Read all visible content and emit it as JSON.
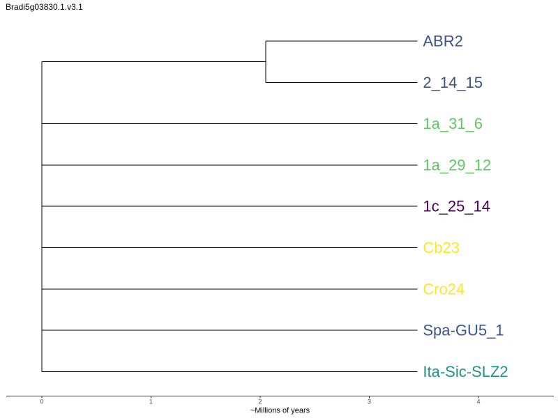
{
  "title": "Bradi5g03830.1.v3.1",
  "chart_data": {
    "type": "tree",
    "title": "Bradi5g03830.1.v3.1",
    "xlabel": "~Millions of years",
    "xticks": [
      "0",
      "1",
      "2",
      "3",
      "4"
    ],
    "xlim": [
      -0.32,
      4.7
    ],
    "root_x": 0,
    "inner_node": {
      "x": 2.05,
      "children": [
        "ABR2",
        "2_14_15"
      ]
    },
    "tip_x": 3.44,
    "leaves": [
      {
        "label": "ABR2",
        "color": "#3b528b"
      },
      {
        "label": "2_14_15",
        "color": "#3b528b"
      },
      {
        "label": "1a_31_6",
        "color": "#5ec962"
      },
      {
        "label": "1a_29_12",
        "color": "#5ec962"
      },
      {
        "label": "1c_25_14",
        "color": "#440154"
      },
      {
        "label": "Cb23",
        "color": "#fde725"
      },
      {
        "label": "Cro24",
        "color": "#fde725"
      },
      {
        "label": "Spa-GU5_1",
        "color": "#3b528b"
      },
      {
        "label": "Ita-Sic-SLZ2",
        "color": "#21918c"
      }
    ]
  }
}
